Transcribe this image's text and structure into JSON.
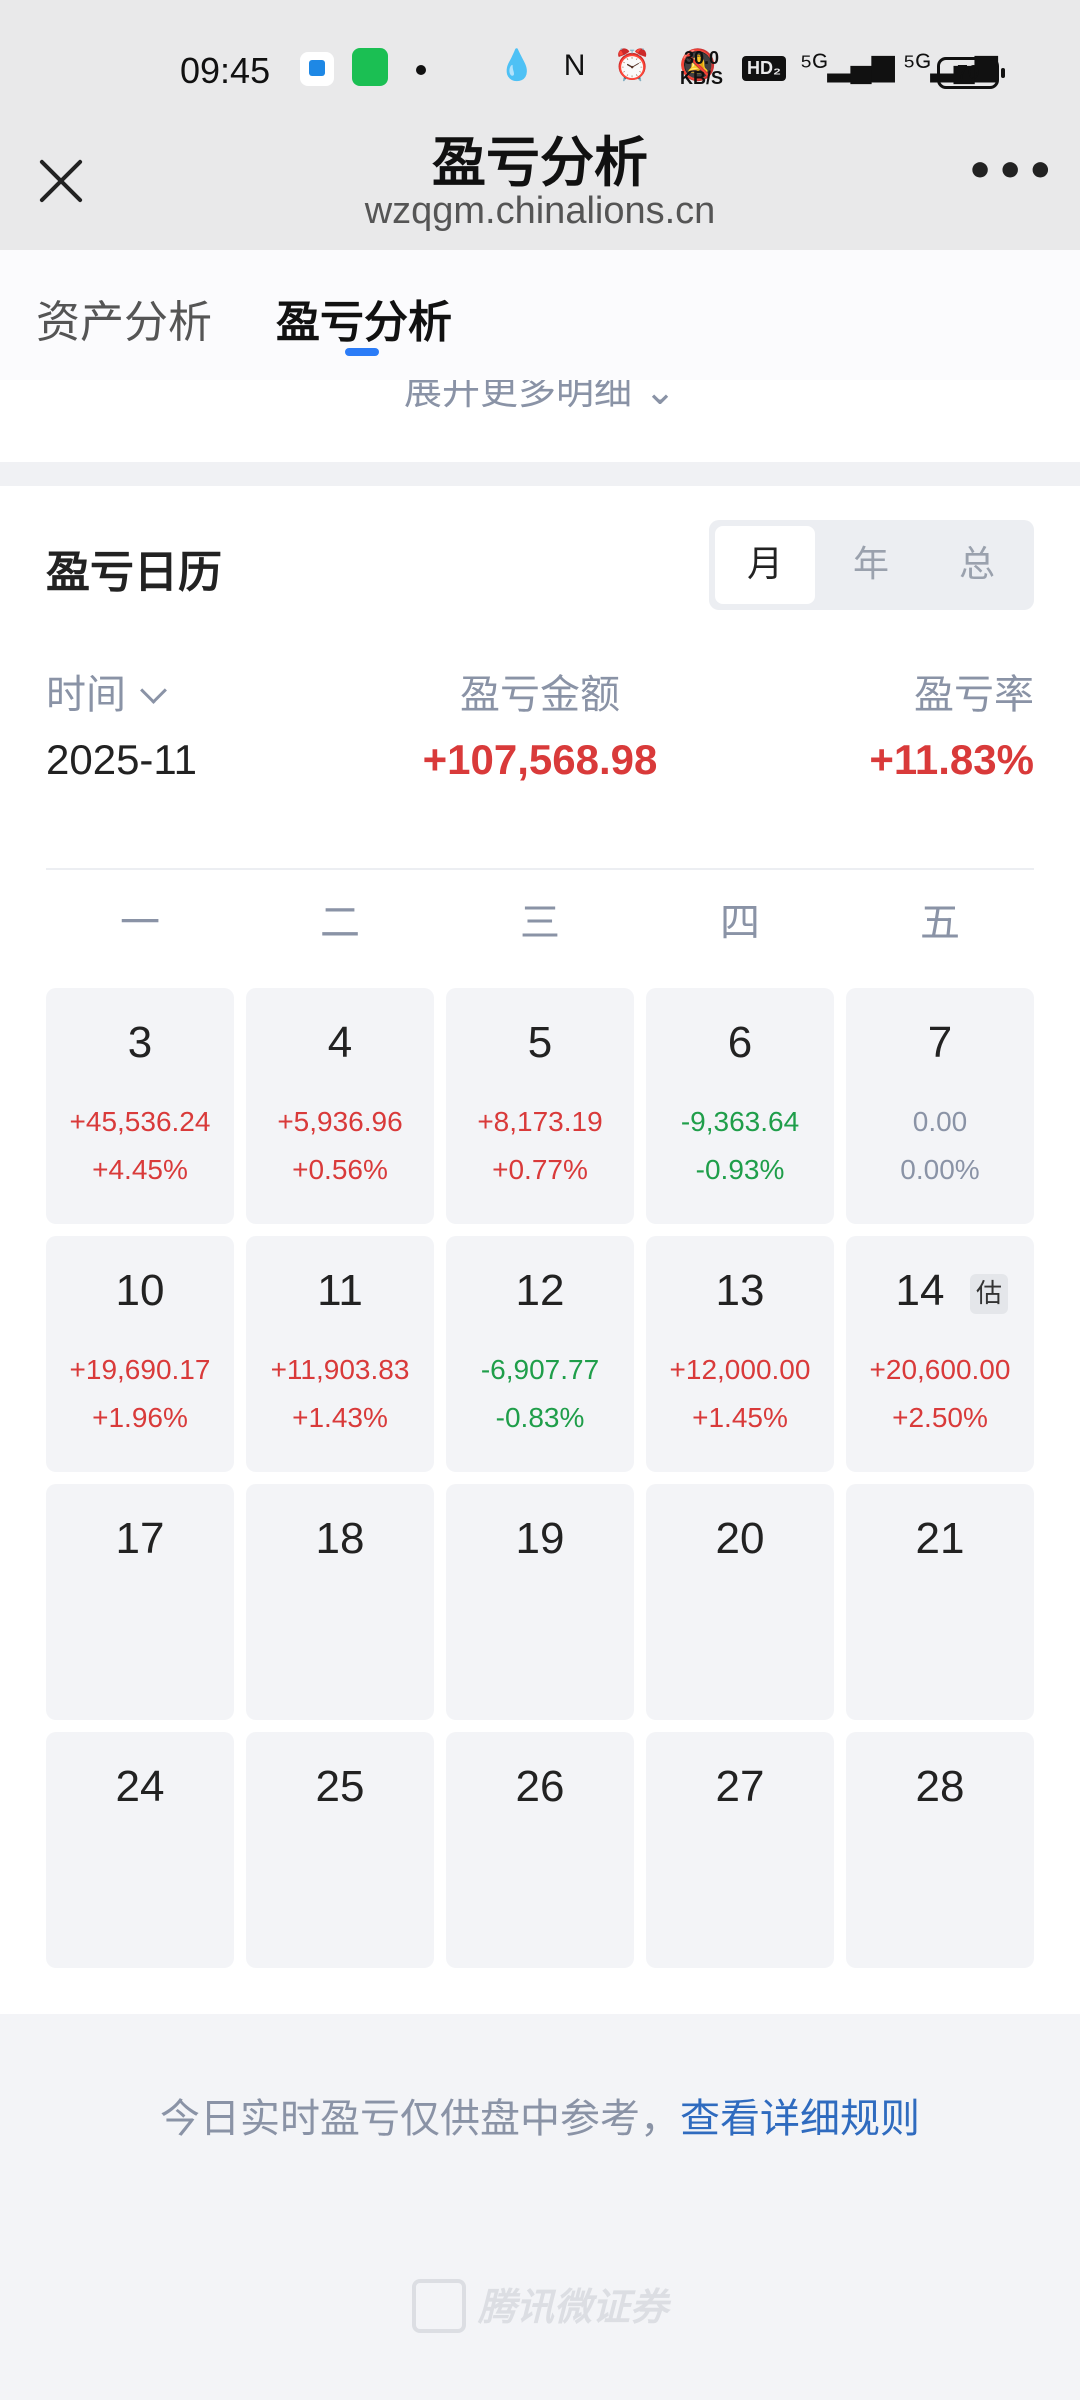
{
  "status_bar": {
    "time": "09:45",
    "icons_left": "💧 N ⏰ 🔕",
    "network_speed": "30.0\nKB/S",
    "hd_label": "HD₂",
    "signal_label": "⁵ᴳ▂▄▆ ⁵ᴳ▂▄▆",
    "battery": "70"
  },
  "header": {
    "title": "盈亏分析",
    "url": "wzqgm.chinalions.cn",
    "more_label": "•••"
  },
  "tabs": [
    {
      "label": "资产分析",
      "active": false
    },
    {
      "label": "盈亏分析",
      "active": true
    }
  ],
  "expand_more": "展开更多明细 ⌄",
  "calendar": {
    "title": "盈亏日历",
    "segments": [
      {
        "label": "月",
        "active": true
      },
      {
        "label": "年",
        "active": false
      },
      {
        "label": "总",
        "active": false
      }
    ],
    "col_time": "时间",
    "col_amount": "盈亏金额",
    "col_rate": "盈亏率",
    "period": "2025-11",
    "total_amount": "+107,568.98",
    "total_rate": "+11.83%",
    "weekdays": [
      "一",
      "二",
      "三",
      "四",
      "五"
    ],
    "weeks": [
      [
        {
          "day": "3",
          "amount": "+45,536.24",
          "rate": "+4.45%",
          "trend": "up"
        },
        {
          "day": "4",
          "amount": "+5,936.96",
          "rate": "+0.56%",
          "trend": "up"
        },
        {
          "day": "5",
          "amount": "+8,173.19",
          "rate": "+0.77%",
          "trend": "up"
        },
        {
          "day": "6",
          "amount": "-9,363.64",
          "rate": "-0.93%",
          "trend": "down"
        },
        {
          "day": "7",
          "amount": "0.00",
          "rate": "0.00%",
          "trend": "flat"
        }
      ],
      [
        {
          "day": "10",
          "amount": "+19,690.17",
          "rate": "+1.96%",
          "trend": "up"
        },
        {
          "day": "11",
          "amount": "+11,903.83",
          "rate": "+1.43%",
          "trend": "up"
        },
        {
          "day": "12",
          "amount": "-6,907.77",
          "rate": "-0.83%",
          "trend": "down"
        },
        {
          "day": "13",
          "amount": "+12,000.00",
          "rate": "+1.45%",
          "trend": "up"
        },
        {
          "day": "14",
          "amount": "+20,600.00",
          "rate": "+2.50%",
          "trend": "up",
          "badge": "估"
        }
      ],
      [
        {
          "day": "17"
        },
        {
          "day": "18"
        },
        {
          "day": "19"
        },
        {
          "day": "20"
        },
        {
          "day": "21"
        }
      ],
      [
        {
          "day": "24"
        },
        {
          "day": "25"
        },
        {
          "day": "26"
        },
        {
          "day": "27"
        },
        {
          "day": "28"
        }
      ]
    ]
  },
  "note": {
    "text": "今日实时盈亏仅供盘中参考，",
    "link": "查看详细规则"
  },
  "footer_brand": "腾讯微证券",
  "colors": {
    "up": "#d93a3a",
    "down": "#1f9e4a",
    "flat": "#8a93a6",
    "accent": "#2b7cf7",
    "link": "#2f6bbf"
  }
}
